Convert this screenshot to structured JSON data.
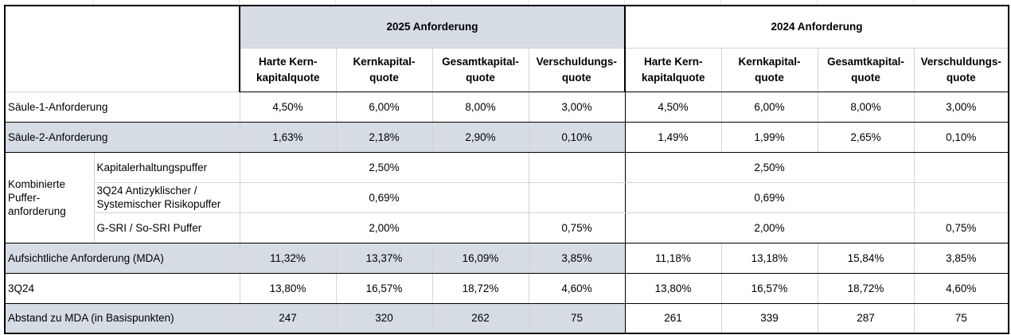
{
  "header": {
    "group_2025": "2025 Anforderung",
    "group_2024": "2024 Anforderung",
    "columns_2025": [
      [
        "Harte Kern-",
        "kapitalquote"
      ],
      [
        "Kernkapital-",
        "quote"
      ],
      [
        "Gesamtkapital-",
        "quote"
      ],
      [
        "Verschuldungs-",
        "quote"
      ]
    ],
    "columns_2024": [
      [
        "Harte Kern-",
        "kapitalquote"
      ],
      [
        "Kernkapital-",
        "quote"
      ],
      [
        "Gesamtkapital-",
        "quote"
      ],
      [
        "Verschuldungs-",
        "quote"
      ]
    ]
  },
  "rows": {
    "saeule1": {
      "label": "Säule-1-Anforderung",
      "y2025": [
        "4,50%",
        "6,00%",
        "8,00%",
        "3,00%"
      ],
      "y2024": [
        "4,50%",
        "6,00%",
        "8,00%",
        "3,00%"
      ]
    },
    "saeule2": {
      "label": "Säule-2-Anforderung",
      "y2025": [
        "1,63%",
        "2,18%",
        "2,90%",
        "0,10%"
      ],
      "y2024": [
        "1,49%",
        "1,99%",
        "2,65%",
        "0,10%"
      ]
    },
    "kombiniert": {
      "label_lines": [
        "Kombinierte",
        "Puffer-",
        "anforderung"
      ],
      "kapitalerhaltung": {
        "label": "Kapitalerhaltungspuffer",
        "y2025": "2,50%",
        "y2025_lev": "",
        "y2024": "2,50%",
        "y2024_lev": ""
      },
      "antizyklisch": {
        "label_lines": [
          "3Q24 Antizyklischer /",
          "Systemischer Risikopuffer"
        ],
        "y2025": "0,69%",
        "y2025_lev": "",
        "y2024": "0,69%",
        "y2024_lev": ""
      },
      "gsri": {
        "label": "G-SRI / So-SRI Puffer",
        "y2025": "2,00%",
        "y2025_lev": "0,75%",
        "y2024": "2,00%",
        "y2024_lev": "0,75%"
      }
    },
    "mda": {
      "label": "Aufsichtliche Anforderung (MDA)",
      "y2025": [
        "11,32%",
        "13,37%",
        "16,09%",
        "3,85%"
      ],
      "y2024": [
        "11,18%",
        "13,18%",
        "15,84%",
        "3,85%"
      ]
    },
    "q3": {
      "label": "3Q24",
      "y2025": [
        "13,80%",
        "16,57%",
        "18,72%",
        "4,60%"
      ],
      "y2024": [
        "13,80%",
        "16,57%",
        "18,72%",
        "4,60%"
      ]
    },
    "abstand": {
      "label": "Abstand zu MDA (in Basispunkten)",
      "y2025": [
        "247",
        "320",
        "262",
        "75"
      ],
      "y2024": [
        "261",
        "339",
        "287",
        "75"
      ]
    }
  },
  "colors": {
    "shade": "#d6dce4",
    "border": "#000000",
    "gridline": "#d4d4d4"
  }
}
